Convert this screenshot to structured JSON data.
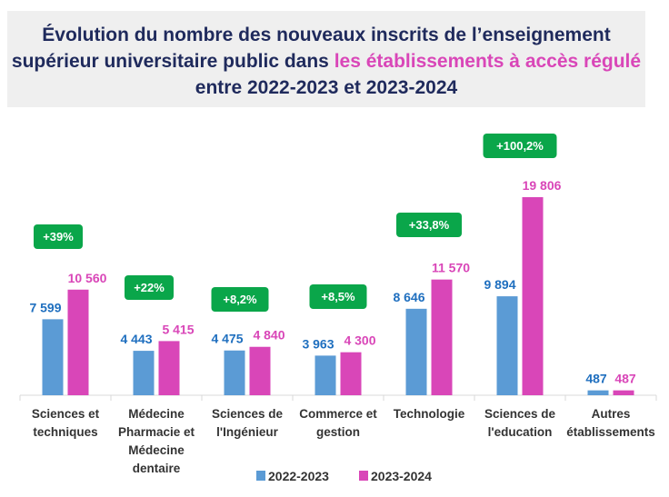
{
  "chart_data": {
    "type": "bar",
    "title": {
      "line1": "Évolution du nombre des nouveaux inscrits de l’enseignement",
      "line2_start": "supérieur universitaire public dans ",
      "line2_highlight": "les établissements à accès régulé",
      "line3": "entre 2022-2023 et 2023-2024"
    },
    "categories": [
      [
        "Sciences et",
        "techniques"
      ],
      [
        "Médecine",
        "Pharmacie et",
        "Médecine",
        "dentaire"
      ],
      [
        "Sciences de",
        "l'Ingénieur"
      ],
      [
        "Commerce et",
        "gestion"
      ],
      [
        "Technologie"
      ],
      [
        "Sciences de",
        "l'education"
      ],
      [
        "Autres",
        "établissements"
      ]
    ],
    "series": [
      {
        "name": "2022-2023",
        "color": "#5b9bd5",
        "label_color": "#1f6fbf",
        "values": [
          7599,
          4443,
          4475,
          3963,
          8646,
          9894,
          487
        ],
        "labels": [
          "7 599",
          "4 443",
          "4 475",
          "3 963",
          "8 646",
          "9 894",
          "487"
        ]
      },
      {
        "name": "2023-2024",
        "color": "#d946b8",
        "label_color": "#d946b8",
        "values": [
          10560,
          5415,
          4840,
          4300,
          11570,
          19806,
          487
        ],
        "labels": [
          "10 560",
          "5 415",
          "4 840",
          "4 300",
          "11 570",
          "19 806",
          "487"
        ]
      }
    ],
    "growth_badges": [
      "+39%",
      "+22%",
      "+8,2%",
      "+8,5%",
      "+33,8%",
      "+100,2%",
      null
    ],
    "badge_color": "#0aa64a",
    "legend_position": "bottom",
    "grid": false,
    "ylim": [
      0,
      20000
    ],
    "title_highlight_color": "#d946b8",
    "title_color": "#1f2a5c"
  }
}
